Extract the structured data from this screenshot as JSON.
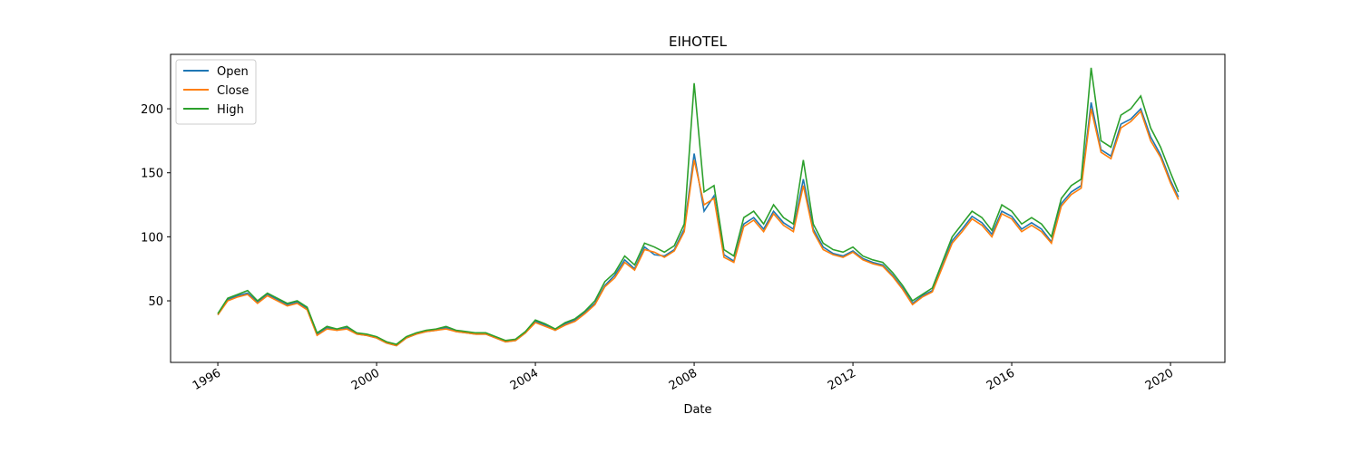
{
  "chart_data": {
    "type": "line",
    "title": "EIHOTEL",
    "x_label": "Date",
    "x": [
      1996.0,
      1996.25,
      1996.5,
      1996.75,
      1997.0,
      1997.25,
      1997.5,
      1997.75,
      1998.0,
      1998.25,
      1998.5,
      1998.75,
      1999.0,
      1999.25,
      1999.5,
      1999.75,
      2000.0,
      2000.25,
      2000.5,
      2000.75,
      2001.0,
      2001.25,
      2001.5,
      2001.75,
      2002.0,
      2002.25,
      2002.5,
      2002.75,
      2003.0,
      2003.25,
      2003.5,
      2003.75,
      2004.0,
      2004.25,
      2004.5,
      2004.75,
      2005.0,
      2005.25,
      2005.5,
      2005.75,
      2006.0,
      2006.25,
      2006.5,
      2006.75,
      2007.0,
      2007.25,
      2007.5,
      2007.75,
      2008.0,
      2008.25,
      2008.5,
      2008.75,
      2009.0,
      2009.25,
      2009.5,
      2009.75,
      2010.0,
      2010.25,
      2010.5,
      2010.75,
      2011.0,
      2011.25,
      2011.5,
      2011.75,
      2012.0,
      2012.25,
      2012.5,
      2012.75,
      2013.0,
      2013.25,
      2013.5,
      2013.75,
      2014.0,
      2014.25,
      2014.5,
      2014.75,
      2015.0,
      2015.25,
      2015.5,
      2015.75,
      2016.0,
      2016.25,
      2016.5,
      2016.75,
      2017.0,
      2017.25,
      2017.5,
      2017.75,
      2018.0,
      2018.25,
      2018.5,
      2018.75,
      2019.0,
      2019.25,
      2019.5,
      2019.75,
      2020.0,
      2020.2
    ],
    "series": [
      {
        "name": "Open",
        "color": "#1f77b4",
        "values": [
          39,
          51,
          54,
          56,
          49,
          55,
          51,
          47,
          49,
          44,
          24,
          29,
          27,
          29,
          24,
          23,
          21,
          17,
          15,
          21,
          24,
          26,
          27,
          29,
          26,
          25,
          24,
          24,
          21,
          18,
          19,
          25,
          34,
          31,
          27,
          32,
          35,
          41,
          48,
          62,
          70,
          82,
          75,
          92,
          86,
          85,
          90,
          106,
          165,
          120,
          132,
          86,
          81,
          110,
          115,
          106,
          120,
          111,
          106,
          145,
          106,
          92,
          87,
          85,
          89,
          83,
          80,
          78,
          70,
          60,
          48,
          54,
          58,
          77,
          97,
          106,
          116,
          111,
          102,
          120,
          116,
          106,
          111,
          106,
          96,
          126,
          135,
          140,
          205,
          168,
          163,
          188,
          192,
          200,
          178,
          164,
          144,
          131
        ]
      },
      {
        "name": "Close",
        "color": "#ff7f0e",
        "values": [
          39,
          50,
          53,
          55,
          48,
          54,
          50,
          46,
          48,
          43,
          23,
          28,
          27,
          28,
          24,
          23,
          21,
          17,
          15,
          21,
          24,
          26,
          27,
          28,
          26,
          25,
          24,
          24,
          21,
          18,
          19,
          25,
          33,
          30,
          27,
          31,
          34,
          40,
          47,
          61,
          68,
          80,
          74,
          90,
          88,
          84,
          89,
          104,
          160,
          125,
          130,
          84,
          80,
          108,
          113,
          104,
          118,
          109,
          104,
          140,
          104,
          90,
          86,
          84,
          88,
          82,
          79,
          77,
          69,
          59,
          47,
          53,
          57,
          76,
          95,
          104,
          114,
          109,
          100,
          118,
          114,
          104,
          109,
          104,
          95,
          124,
          133,
          138,
          200,
          166,
          161,
          185,
          190,
          198,
          175,
          162,
          142,
          129
        ]
      },
      {
        "name": "High",
        "color": "#2ca02c",
        "values": [
          40,
          52,
          55,
          58,
          50,
          56,
          52,
          48,
          50,
          45,
          25,
          30,
          28,
          30,
          25,
          24,
          22,
          18,
          16,
          22,
          25,
          27,
          28,
          30,
          27,
          26,
          25,
          25,
          22,
          19,
          20,
          26,
          35,
          32,
          28,
          33,
          36,
          42,
          50,
          65,
          72,
          85,
          78,
          95,
          92,
          88,
          93,
          110,
          220,
          135,
          140,
          90,
          85,
          115,
          120,
          110,
          125,
          115,
          110,
          160,
          110,
          95,
          90,
          88,
          92,
          85,
          82,
          80,
          72,
          62,
          50,
          55,
          60,
          80,
          100,
          110,
          120,
          115,
          105,
          125,
          120,
          110,
          115,
          110,
          100,
          130,
          140,
          145,
          232,
          175,
          170,
          195,
          200,
          210,
          185,
          170,
          150,
          135
        ]
      }
    ],
    "xlim": [
      1994.81,
      2021.37
    ],
    "xticks": [
      1996,
      2000,
      2004,
      2008,
      2012,
      2016,
      2020
    ],
    "ylim": [
      1.9,
      242.5
    ],
    "yticks": [
      50,
      100,
      150,
      200
    ],
    "legend": "upper left",
    "grid": false
  }
}
